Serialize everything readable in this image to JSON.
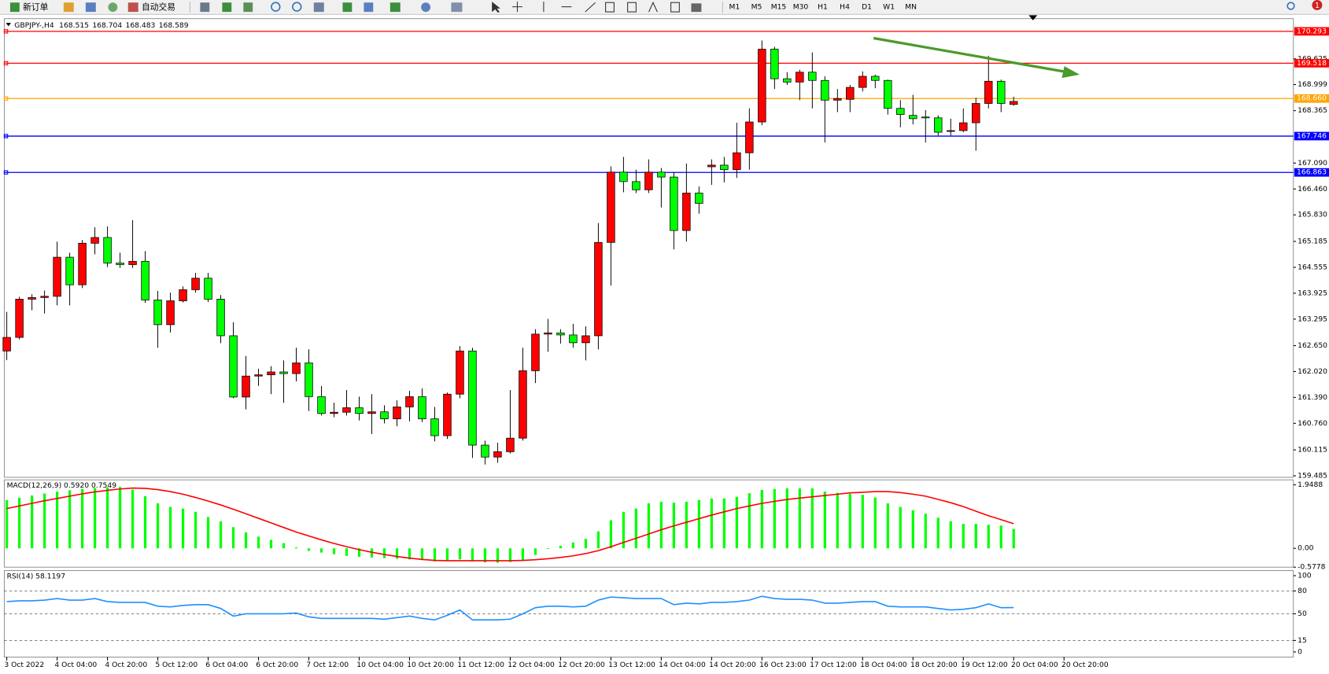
{
  "toolbar": {
    "new_order": "新订单",
    "auto_trading": "自动交易",
    "periods": [
      "M1",
      "M5",
      "M15",
      "M30",
      "H1",
      "H4",
      "D1",
      "W1",
      "MN"
    ],
    "badge": "1"
  },
  "chart_data": [
    {
      "type": "candlestick",
      "title": "GBPJPY-,H4",
      "categories": [
        "3 Oct 2022",
        null,
        null,
        null,
        "4 Oct 04:00",
        null,
        null,
        null,
        "4 Oct 20:00",
        null,
        null,
        null,
        "5 Oct 12:00",
        null,
        null,
        null,
        "6 Oct 04:00",
        null,
        null,
        null,
        "6 Oct 20:00",
        null,
        null,
        null,
        "7 Oct 12:00",
        null,
        null,
        null,
        "10 Oct 04:00",
        null,
        null,
        null,
        "10 Oct 20:00",
        null,
        null,
        null,
        "11 Oct 12:00",
        null,
        null,
        null,
        "12 Oct 04:00",
        null,
        null,
        null,
        "12 Oct 20:00",
        null,
        null,
        null,
        "13 Oct 12:00",
        null,
        null,
        null,
        "14 Oct 04:00",
        null,
        null,
        null,
        "14 Oct 20:00",
        null,
        null,
        null,
        "16 Oct 23:00",
        null,
        null,
        null,
        "17 Oct 12:00",
        null,
        null,
        null,
        "18 Oct 04:00",
        null,
        null,
        null,
        "18 Oct 20:00",
        null,
        null,
        null,
        "19 Oct 12:00",
        null,
        null,
        null,
        "20 Oct 04:00",
        null,
        null,
        null,
        "20 Oct 20:00"
      ],
      "open": [
        162.52,
        162.85,
        163.78,
        163.82,
        163.85,
        164.8,
        164.13,
        165.14,
        165.28,
        164.66,
        164.62,
        164.7,
        163.76,
        163.16,
        163.74,
        164.01,
        164.29,
        163.78,
        162.89,
        161.4,
        161.91,
        161.94,
        162.01,
        161.97,
        162.23,
        161.41,
        161.0,
        161.03,
        161.14,
        161.0,
        161.04,
        160.87,
        161.16,
        161.41,
        160.87,
        160.46,
        161.47,
        162.52,
        160.23,
        159.94,
        160.07,
        160.4,
        162.04,
        162.93,
        162.96,
        162.91,
        162.72,
        162.89,
        165.16,
        166.87,
        166.64,
        166.44,
        166.87,
        166.75,
        165.45,
        166.36,
        167.0,
        167.04,
        166.93,
        167.34,
        168.09,
        169.86,
        169.14,
        169.06,
        169.3,
        169.1,
        168.62,
        168.64,
        168.93,
        169.2,
        169.1,
        168.42,
        168.25,
        168.21,
        168.19,
        167.86,
        167.88,
        168.07,
        168.54,
        169.08,
        168.515,
        null,
        null,
        null,
        null
      ],
      "high": [
        163.47,
        163.84,
        163.9,
        163.99,
        165.18,
        164.91,
        165.22,
        165.53,
        165.55,
        164.91,
        165.7,
        164.95,
        163.98,
        163.94,
        164.09,
        164.42,
        164.42,
        163.88,
        163.22,
        162.4,
        162.09,
        162.15,
        162.29,
        162.6,
        162.56,
        161.67,
        161.26,
        161.57,
        161.41,
        161.47,
        161.2,
        161.32,
        161.55,
        161.61,
        161.16,
        161.51,
        162.64,
        162.6,
        160.34,
        160.29,
        161.57,
        162.6,
        163.05,
        163.3,
        163.05,
        163.18,
        163.12,
        165.63,
        167.01,
        167.24,
        166.93,
        167.18,
        166.97,
        166.87,
        167.08,
        166.52,
        167.18,
        167.24,
        168.07,
        168.42,
        170.07,
        169.92,
        169.3,
        169.36,
        169.78,
        169.2,
        168.89,
        168.99,
        169.32,
        169.24,
        169.12,
        168.62,
        168.75,
        168.38,
        168.25,
        168.17,
        168.42,
        168.68,
        169.7,
        169.12,
        168.704,
        null,
        null,
        null,
        null
      ],
      "low": [
        162.3,
        162.8,
        163.51,
        163.43,
        163.63,
        163.63,
        164.05,
        164.87,
        164.56,
        164.54,
        164.54,
        163.69,
        162.6,
        162.97,
        163.7,
        163.94,
        163.71,
        162.71,
        161.37,
        161.1,
        161.67,
        161.47,
        161.26,
        161.78,
        161.06,
        160.95,
        160.91,
        160.95,
        160.83,
        160.5,
        160.76,
        160.69,
        160.81,
        160.79,
        160.32,
        160.38,
        161.37,
        159.92,
        159.76,
        159.8,
        160.03,
        160.34,
        161.74,
        162.5,
        162.7,
        162.6,
        162.29,
        162.56,
        164.11,
        166.38,
        166.36,
        166.36,
        166.01,
        164.99,
        165.18,
        165.86,
        166.56,
        166.62,
        166.73,
        166.93,
        168.01,
        168.89,
        168.99,
        168.62,
        168.42,
        167.59,
        168.33,
        168.33,
        168.83,
        168.91,
        168.27,
        167.96,
        168.03,
        167.59,
        167.76,
        167.76,
        167.84,
        167.39,
        168.42,
        168.33,
        168.483,
        null,
        null,
        null,
        null
      ],
      "close": [
        162.85,
        163.78,
        163.82,
        163.85,
        164.8,
        164.13,
        165.14,
        165.28,
        164.66,
        164.62,
        164.7,
        163.76,
        163.16,
        163.74,
        164.01,
        164.29,
        163.78,
        162.89,
        161.4,
        161.91,
        161.94,
        162.01,
        161.97,
        162.23,
        161.41,
        161.0,
        161.03,
        161.14,
        161.0,
        161.04,
        160.87,
        161.16,
        161.41,
        160.87,
        160.46,
        161.47,
        162.52,
        160.23,
        159.94,
        160.07,
        160.4,
        162.04,
        162.93,
        162.96,
        162.91,
        162.72,
        162.89,
        165.16,
        166.87,
        166.64,
        166.44,
        166.87,
        166.75,
        165.45,
        166.36,
        166.11,
        167.04,
        166.93,
        167.34,
        168.09,
        169.86,
        169.14,
        169.06,
        169.3,
        169.1,
        168.62,
        168.66,
        168.93,
        169.2,
        169.1,
        168.42,
        168.27,
        168.17,
        168.19,
        167.84,
        167.88,
        168.07,
        168.54,
        169.08,
        168.54,
        168.589,
        null,
        null,
        null,
        null
      ],
      "up_color": "#ff0000",
      "down_color": "#00ff00",
      "wick_color": "#000000",
      "ylim": [
        159.448,
        170.602
      ],
      "yticks": [
        169.625,
        168.999,
        168.365,
        {
          "value": 167.09,
          "label": "167.090"
        },
        {
          "value": 166.46,
          "label": "166.460"
        },
        {
          "value": 165.83,
          "label": "165.830"
        },
        165.185,
        164.555,
        163.925,
        163.295,
        {
          "value": 162.65,
          "label": "162.650"
        },
        {
          "value": 162.02,
          "label": "162.020"
        },
        {
          "value": 161.39,
          "label": "161.390"
        },
        {
          "value": 160.76,
          "label": "160.760"
        },
        160.115,
        159.485
      ],
      "hlines": [
        {
          "value": 170.293,
          "color": "#ff0000"
        },
        {
          "value": 169.518,
          "color": "#ff0000"
        },
        {
          "value": 168.66,
          "label": "168.660",
          "color": "#ffa500"
        },
        {
          "value": 167.746,
          "color": "#0000ff"
        },
        {
          "value": 166.863,
          "color": "#0000ff"
        }
      ],
      "grid": false
    },
    {
      "type": "bar",
      "title": "MACD(12,26,9) 0.5920 0.7549",
      "series": [
        {
          "type": "bar",
          "color": "#00ff00",
          "values": [
            1.48,
            1.55,
            1.62,
            1.68,
            1.74,
            1.78,
            1.82,
            1.85,
            1.87,
            1.88,
            1.8,
            1.6,
            1.38,
            1.27,
            1.22,
            1.12,
            0.96,
            0.83,
            0.65,
            0.49,
            0.36,
            0.26,
            0.16,
            0.03,
            -0.08,
            -0.13,
            -0.18,
            -0.23,
            -0.26,
            -0.28,
            -0.3,
            -0.32,
            -0.34,
            -0.36,
            -0.4,
            -0.38,
            -0.34,
            -0.4,
            -0.43,
            -0.44,
            -0.42,
            -0.38,
            -0.2,
            -0.02,
            0.08,
            0.18,
            0.29,
            0.52,
            0.86,
            1.12,
            1.22,
            1.38,
            1.43,
            1.4,
            1.43,
            1.48,
            1.53,
            1.53,
            1.58,
            1.69,
            1.79,
            1.82,
            1.84,
            1.84,
            1.84,
            1.74,
            1.7,
            1.67,
            1.64,
            1.56,
            1.38,
            1.27,
            1.17,
            1.06,
            0.94,
            0.83,
            0.75,
            0.75,
            0.72,
            0.7,
            0.592
          ]
        },
        {
          "type": "line",
          "color": "#ff0000",
          "values": [
            1.22,
            1.3,
            1.38,
            1.46,
            1.53,
            1.6,
            1.67,
            1.73,
            1.78,
            1.82,
            1.85,
            1.84,
            1.8,
            1.74,
            1.66,
            1.56,
            1.45,
            1.33,
            1.2,
            1.06,
            0.92,
            0.78,
            0.64,
            0.5,
            0.38,
            0.26,
            0.15,
            0.05,
            -0.04,
            -0.12,
            -0.19,
            -0.25,
            -0.3,
            -0.34,
            -0.37,
            -0.38,
            -0.38,
            -0.38,
            -0.38,
            -0.38,
            -0.38,
            -0.37,
            -0.35,
            -0.32,
            -0.28,
            -0.23,
            -0.16,
            -0.07,
            0.05,
            0.18,
            0.31,
            0.44,
            0.57,
            0.69,
            0.8,
            0.91,
            1.02,
            1.12,
            1.22,
            1.3,
            1.38,
            1.44,
            1.5,
            1.54,
            1.58,
            1.62,
            1.66,
            1.7,
            1.72,
            1.74,
            1.74,
            1.71,
            1.66,
            1.6,
            1.5,
            1.4,
            1.28,
            1.14,
            1.0,
            0.88,
            0.7549
          ]
        }
      ],
      "ylim": [
        -0.5778,
        2.1
      ],
      "yticks": [
        1.9488,
        {
          "value": 0,
          "label": "0.00"
        },
        -0.5778
      ]
    },
    {
      "type": "line",
      "title": "RSI(14) 58.1197",
      "color": "#1e90ff",
      "values": [
        66,
        67,
        67,
        68,
        70,
        68,
        68,
        70,
        66,
        65,
        65,
        65,
        60,
        59,
        61,
        62,
        62,
        57,
        47,
        50,
        50,
        50,
        50,
        51,
        46,
        44,
        44,
        44,
        44,
        44,
        43,
        45,
        47,
        44,
        42,
        48,
        55,
        42,
        42,
        42,
        43,
        50,
        58,
        60,
        60,
        59,
        60,
        68,
        72,
        71,
        70,
        70,
        70,
        62,
        64,
        63,
        65,
        65,
        66,
        68,
        73,
        70,
        69,
        69,
        68,
        64,
        64,
        65,
        66,
        66,
        60,
        59,
        59,
        59,
        57,
        55,
        56,
        58,
        63,
        58,
        58.1197
      ],
      "ylim": [
        -6.7,
        106.7
      ],
      "yticks": [
        100,
        80,
        50,
        15,
        0
      ],
      "grid": "dashed"
    }
  ]
}
